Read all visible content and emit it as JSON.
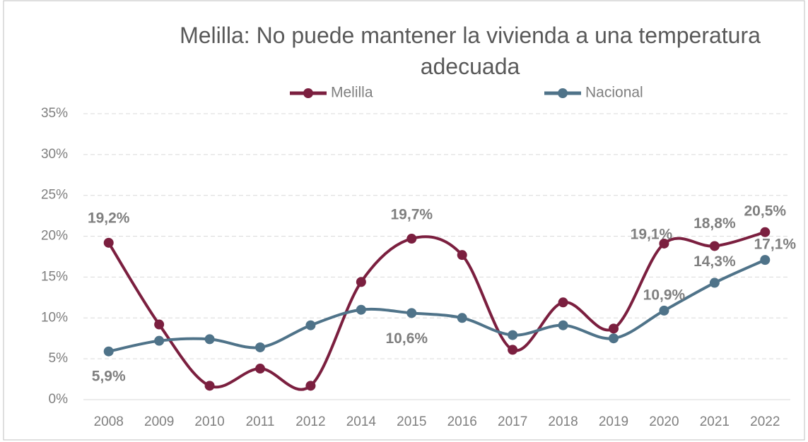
{
  "chart_data": {
    "type": "line",
    "title": "Melilla: No puede mantener la vivienda a una temperatura adecuada",
    "categories": [
      "2008",
      "2009",
      "2010",
      "2011",
      "2012",
      "2014",
      "2015",
      "2016",
      "2017",
      "2018",
      "2019",
      "2020",
      "2021",
      "2022"
    ],
    "series": [
      {
        "name": "Melilla",
        "color": "#7b1f3f",
        "values": [
          19.2,
          9.2,
          1.7,
          3.8,
          1.7,
          14.4,
          19.7,
          17.7,
          6.1,
          11.9,
          8.7,
          19.1,
          18.8,
          20.5
        ],
        "value_labels": [
          "19,2%",
          null,
          null,
          null,
          null,
          null,
          "19,7%",
          null,
          null,
          null,
          null,
          "19,1%",
          "18,8%",
          "20,5%"
        ]
      },
      {
        "name": "Nacional",
        "color": "#4f7389",
        "values": [
          5.9,
          7.2,
          7.4,
          6.4,
          9.1,
          11.0,
          10.6,
          10.0,
          7.9,
          9.1,
          7.5,
          10.9,
          14.3,
          17.1
        ],
        "value_labels": [
          "5,9%",
          null,
          null,
          null,
          null,
          null,
          "10,6%",
          null,
          null,
          null,
          null,
          "10,9%",
          "14,3%",
          "17,1%"
        ]
      }
    ],
    "ylim": [
      0,
      35
    ],
    "yticks": [
      {
        "value": 0,
        "label": "0%"
      },
      {
        "value": 5,
        "label": "5%"
      },
      {
        "value": 10,
        "label": "10%"
      },
      {
        "value": 15,
        "label": "15%"
      },
      {
        "value": 20,
        "label": "20%"
      },
      {
        "value": 25,
        "label": "25%"
      },
      {
        "value": 30,
        "label": "30%"
      },
      {
        "value": 35,
        "label": "35%"
      }
    ],
    "grid": true,
    "legend": "top"
  }
}
